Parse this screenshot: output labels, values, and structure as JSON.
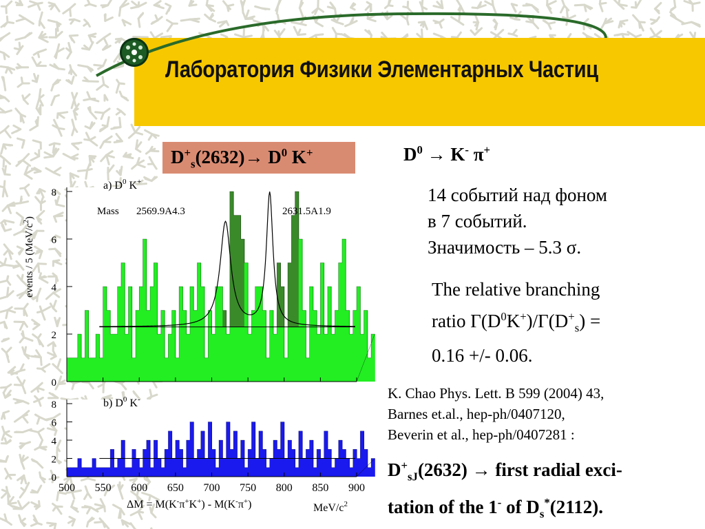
{
  "header": {
    "title": "Лаборатория Физики Элементарных Частиц"
  },
  "title_box": {
    "main": "D",
    "sup1": "+",
    "sub1": "s",
    "rest1": "(2632)→ D",
    "sup2": "0",
    "rest2": " K",
    "sup3": "+"
  },
  "decay_mode": {
    "d": "D",
    "sup0": "0",
    "arrow": " → K",
    "supm": "-",
    "pi": " π",
    "supp": "+"
  },
  "significance": {
    "line1": "14 событий над фоном",
    "line2": "в 7 событий.",
    "line3": "Значимость – 5.3 σ."
  },
  "branching": {
    "line1": "The relative branching",
    "p1": "ratio Γ(D",
    "s1": "0",
    "p2": "K",
    "s2": "+",
    "p3": ")/Γ(D",
    "s3": "+",
    "s4": "s",
    "p4": ") =",
    "line3": "0.16 +/- 0.06."
  },
  "references": {
    "line1": "K. Chao Phys. Lett. B 599 (2004) 43,",
    "line2": "Barnes et.al., hep-ph/0407120,",
    "line3": "Beverin et al., hep-ph/0407281 :"
  },
  "conclusion": {
    "p1": "D",
    "s1": "+",
    "s2": "sJ",
    "p2": "(2632) → first radial exci-",
    "p3": "tation of the 1",
    "s3": "-",
    "p4": " of  D",
    "s4": "s",
    "s5": "*",
    "p5": "(2112)."
  },
  "colors": {
    "header_band": "#f7c800",
    "title_box": "#d98b72",
    "hist_a": "#22ee22",
    "hist_a_peak": "#3a8a2a",
    "hist_b": "#1a1aee"
  },
  "chart_data": [
    {
      "type": "bar",
      "panel_label": "a) D",
      "panel_label_sup1": "0",
      "panel_label_k": " K",
      "panel_label_sup2": "+",
      "mass_label": "Mass",
      "mass1": "2569.9A4.3",
      "mass2": "2631.5A1.9",
      "ylabel": "events / 5 (MeV/c",
      "ylabel_sup": "2",
      "ylabel_end": ")",
      "ylim": [
        0,
        8
      ],
      "y_ticks": [
        "0",
        "2",
        "4",
        "6",
        "8"
      ],
      "x_start": 500,
      "bin_width": 5,
      "values": [
        1,
        1,
        1,
        2,
        1,
        3,
        1,
        1,
        2,
        1,
        4,
        3,
        2,
        2,
        4,
        5,
        2,
        4,
        1,
        3,
        4,
        6,
        3,
        4,
        5,
        2,
        3,
        1,
        2,
        3,
        1,
        4,
        3,
        2,
        4,
        3,
        5,
        4,
        1,
        3,
        2,
        4,
        4,
        3,
        2,
        8,
        7,
        7,
        6,
        5,
        2,
        3,
        4,
        4,
        3,
        1,
        3,
        2,
        5,
        4,
        1,
        5,
        7,
        8,
        6,
        3,
        1,
        4,
        3,
        2,
        5,
        2,
        4,
        2,
        3,
        5,
        6,
        3,
        2,
        3,
        4,
        2,
        3,
        1,
        2
      ],
      "peak_bins": [
        43,
        44,
        45,
        46,
        47,
        48,
        58,
        59,
        60,
        61,
        62,
        63
      ],
      "background_level": 2.3
    },
    {
      "type": "bar",
      "panel_label": "b) D",
      "panel_label_sup1": "0",
      "panel_label_k": " K",
      "panel_label_sup2": "-",
      "ylim": [
        0,
        8
      ],
      "y_ticks": [
        "0",
        "2",
        "4",
        "6",
        "8"
      ],
      "x_ticks": [
        "500",
        "550",
        "600",
        "650",
        "700",
        "750",
        "800",
        "850",
        "900"
      ],
      "xlabel": "ΔM = M(K",
      "xlabel_s1": "-",
      "xlabel_p1": "π",
      "xlabel_s2": "+",
      "xlabel_p2": "K",
      "xlabel_s3": "+",
      "xlabel_p3": ") - M(K",
      "xlabel_s4": "-",
      "xlabel_p4": "π",
      "xlabel_s5": "+",
      "xlabel_p5": ")",
      "unit": "MeV/c",
      "unit_sup": "2",
      "x_start": 500,
      "bin_width": 5,
      "values": [
        1,
        1,
        1,
        2,
        1,
        1,
        1,
        2,
        1,
        1,
        1,
        1,
        3,
        1,
        2,
        4,
        1,
        1,
        3,
        2,
        1,
        3,
        4,
        1,
        4,
        2,
        1,
        3,
        5,
        2,
        4,
        3,
        1,
        4,
        6,
        2,
        3,
        5,
        2,
        6,
        3,
        1,
        4,
        2,
        6,
        3,
        5,
        2,
        4,
        1,
        3,
        6,
        2,
        5,
        3,
        1,
        2,
        4,
        3,
        6,
        2,
        4,
        3,
        1,
        5,
        2,
        3,
        4,
        1,
        3,
        2,
        5,
        3,
        1,
        2,
        4,
        3,
        2,
        1,
        3,
        2,
        5,
        3,
        1,
        2
      ],
      "background_level": 2.0
    }
  ]
}
